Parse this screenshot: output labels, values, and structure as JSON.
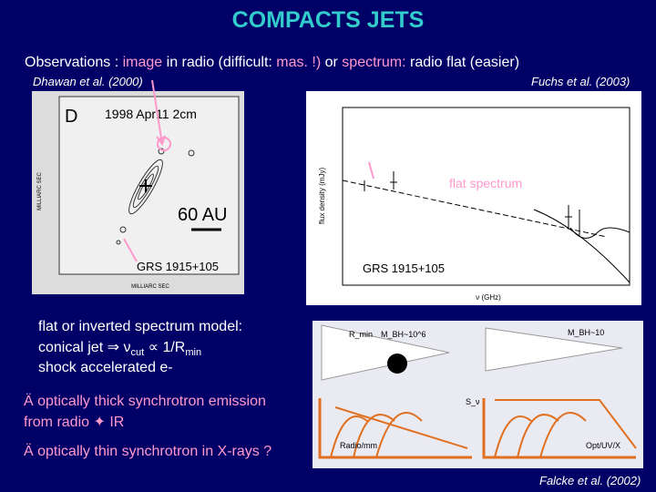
{
  "slide": {
    "title": "COMPACTS JETS",
    "highlight_color": "#ff99cc",
    "observations": [
      {
        "text": "Observations : ",
        "highlight": false
      },
      {
        "text": "image",
        "highlight": true
      },
      {
        "text": " in radio (difficult: ",
        "highlight": false
      },
      {
        "text": "mas. !)",
        "highlight": true
      },
      {
        "text": " or ",
        "highlight": false
      },
      {
        "text": "spectrum:",
        "highlight": true
      },
      {
        "text": " radio flat (easier)",
        "highlight": false
      }
    ],
    "credits": {
      "left": "Dhawan et al. (2000)",
      "right": "Fuchs et al. (2003)",
      "bottom": "Falcke et al. (2002)"
    },
    "radio_image": {
      "panel": "D",
      "date": "1998 Apr11   2cm",
      "scale": "60 AU",
      "source": "GRS 1915+105",
      "y_axis": "MILLIARC SEC",
      "x_axis": "MILLIARC SEC"
    },
    "spectrum_image": {
      "annotation": "flat spectrum",
      "source": "GRS 1915+105",
      "y_axis": "flux density (mJy)",
      "x_axis": "ν (GHz)"
    },
    "model": {
      "line1": "flat or inverted spectrum model:",
      "line2": [
        "conical jet ⇒ ν",
        "cut",
        " ∝ 1/R",
        "min"
      ],
      "line3": "shock accelerated e-"
    },
    "bullets": [
      {
        "marker": "Ä",
        "lines": [
          "optically thick synchrotron emission",
          "from radio ✦ IR"
        ]
      },
      {
        "marker": "Ä",
        "lines": [
          "optically thin synchrotron in X-rays ?"
        ]
      }
    ],
    "diagram": {
      "left_band": "Radio/mm",
      "right_band": "Opt/UV/X",
      "left_mass": "M_BH~10^6",
      "right_mass": "M_BH~10",
      "size": "R_min",
      "flux": "S_ν"
    }
  }
}
